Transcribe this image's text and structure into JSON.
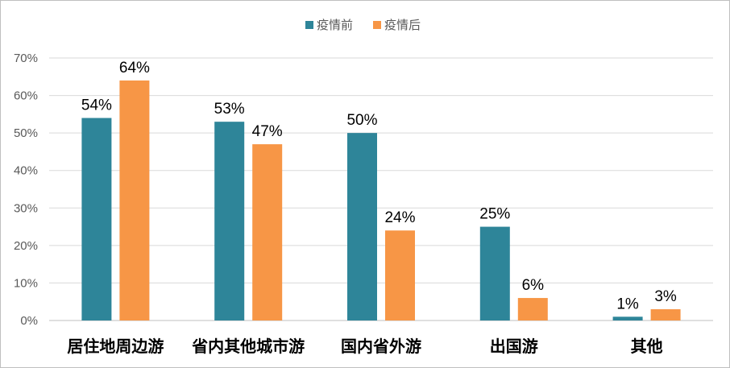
{
  "chart_data": {
    "type": "bar",
    "title": "",
    "xlabel": "",
    "ylabel": "",
    "categories": [
      "居住地周边游",
      "省内其他城市游",
      "国内省外游",
      "出国游",
      "其他"
    ],
    "series": [
      {
        "name": "疫情前",
        "values": [
          54,
          53,
          50,
          25,
          1
        ],
        "labels": [
          "54%",
          "53%",
          "50%",
          "25%",
          "1%"
        ],
        "color": "#2e8599"
      },
      {
        "name": "疫情后",
        "values": [
          64,
          47,
          24,
          6,
          3
        ],
        "labels": [
          "64%",
          "47%",
          "24%",
          "6%",
          "3%"
        ],
        "color": "#f79646"
      }
    ],
    "ylim": [
      0,
      70
    ],
    "yticks": [
      "0%",
      "10%",
      "20%",
      "30%",
      "40%",
      "50%",
      "60%",
      "70%"
    ],
    "grid": true,
    "legend_position": "top-center"
  }
}
